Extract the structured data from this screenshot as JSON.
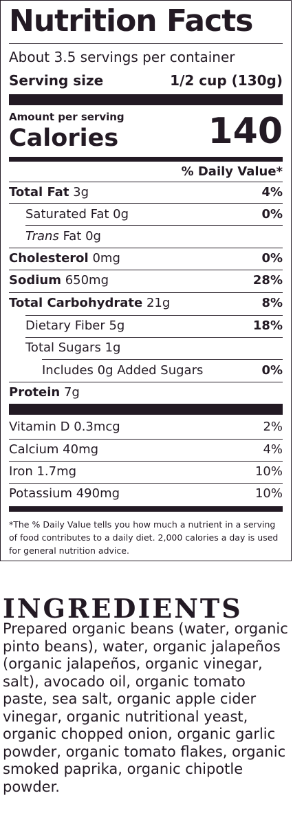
{
  "label": {
    "title": "Nutrition Facts",
    "servings": "About 3.5 servings per container",
    "serving_size_label": "Serving size",
    "serving_size_value": "1/2 cup (130g)",
    "amount_per_serving": "Amount per serving",
    "calories_label": "Calories",
    "calories_value": "140",
    "dv_header": "% Daily Value*",
    "nutrients": [
      {
        "name": "Total Fat",
        "amount": "3g",
        "dv": "4%"
      },
      {
        "name": "Saturated Fat",
        "amount": "0g",
        "dv": "0%"
      },
      {
        "name": "Trans",
        "amount": "Fat 0g",
        "dv": ""
      },
      {
        "name": "Cholesterol",
        "amount": "0mg",
        "dv": "0%"
      },
      {
        "name": "Sodium",
        "amount": "650mg",
        "dv": "28%"
      },
      {
        "name": "Total Carbohydrate",
        "amount": "21g",
        "dv": "8%"
      },
      {
        "name": "Dietary Fiber",
        "amount": "5g",
        "dv": "18%"
      },
      {
        "name": "Total Sugars",
        "amount": "1g",
        "dv": ""
      },
      {
        "name": "Includes 0g Added Sugars",
        "amount": "",
        "dv": "0%"
      },
      {
        "name": "Protein",
        "amount": "7g",
        "dv": ""
      }
    ],
    "vitamins": [
      {
        "text": "Vitamin D 0.3mcg",
        "dv": "2%"
      },
      {
        "text": "Calcium 40mg",
        "dv": "4%"
      },
      {
        "text": "Iron 1.7mg",
        "dv": "10%"
      },
      {
        "text": "Potassium 490mg",
        "dv": "10%"
      }
    ],
    "footnote": "*The % Daily Value tells you how much a nutrient in a serving of food contributes to a daily diet. 2,000 calories a day is used for general nutrition advice."
  },
  "ingredients": {
    "title": "INGREDIENTS",
    "text": "Prepared organic beans (water, organic pinto beans), water, organic jalapeños (organic jalapeños, organic vinegar, salt), avocado oil, organic tomato paste, sea salt, organic apple cider vinegar, organic nutritional yeast, organic chopped onion, organic garlic powder, organic tomato flakes, organic smoked paprika, organic chipotle powder."
  }
}
